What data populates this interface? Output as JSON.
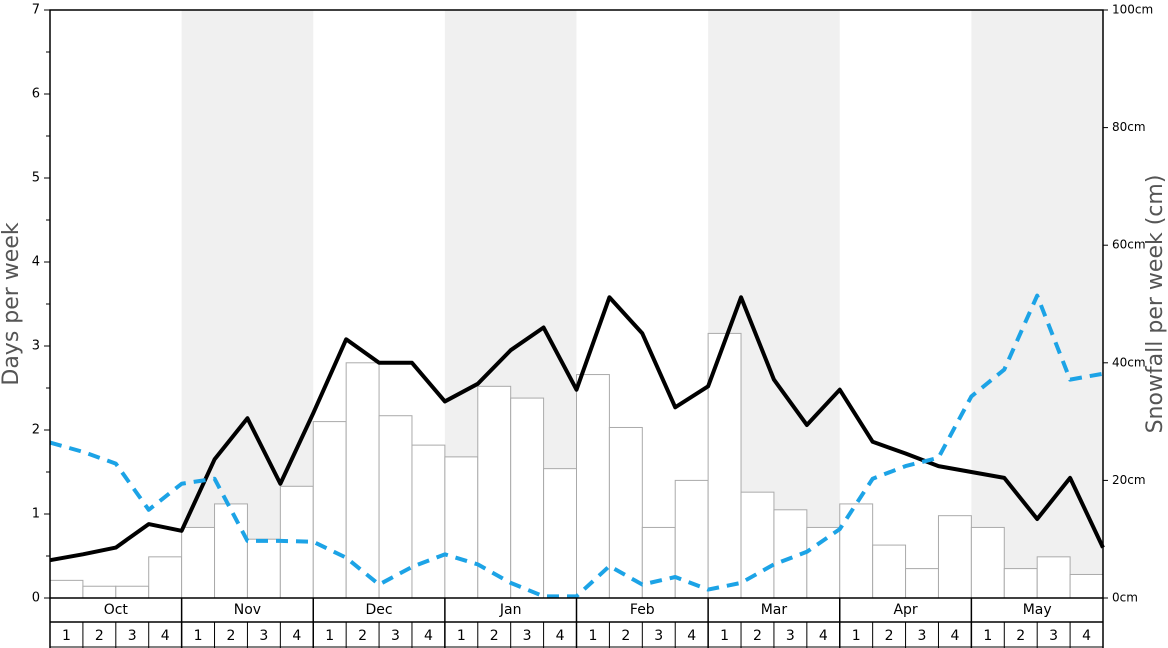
{
  "chart_data": {
    "type": "bar",
    "y_label": "Days per week",
    "y2_label": "Snowfall per week (cm)",
    "months": [
      "Oct",
      "Nov",
      "Dec",
      "Jan",
      "Feb",
      "Mar",
      "Apr",
      "May"
    ],
    "categories": [
      "1",
      "2",
      "3",
      "4",
      "1",
      "2",
      "3",
      "4",
      "1",
      "2",
      "3",
      "4",
      "1",
      "2",
      "3",
      "4",
      "1",
      "2",
      "3",
      "4",
      "1",
      "2",
      "3",
      "4",
      "1",
      "2",
      "3",
      "4",
      "1",
      "2",
      "3",
      "4"
    ],
    "xlim": [
      0,
      32
    ],
    "ylim": [
      0,
      7
    ],
    "yticks": [
      0,
      1,
      2,
      3,
      4,
      5,
      6,
      7
    ],
    "y2lim": [
      0,
      100
    ],
    "y2ticks": [
      {
        "value": 0,
        "label": "0cm"
      },
      {
        "value": 20,
        "label": "20cm"
      },
      {
        "value": 40,
        "label": "40cm"
      },
      {
        "value": 60,
        "label": "60cm"
      },
      {
        "value": 80,
        "label": "80cm"
      },
      {
        "value": 100,
        "label": "100cm"
      }
    ],
    "series": [
      {
        "type": "bar",
        "axis": "y2",
        "color": "#ffffff",
        "values": [
          3,
          2,
          2,
          7,
          12,
          16,
          10,
          19,
          30,
          40,
          31,
          26,
          24,
          36,
          34,
          22,
          38,
          29,
          12,
          20,
          45,
          18,
          15,
          12,
          16,
          9,
          5,
          14,
          12,
          5,
          7,
          4
        ]
      },
      {
        "type": "line",
        "color": "#000000",
        "dashed": false,
        "x": [
          0,
          1,
          2,
          3,
          4,
          5,
          6,
          7,
          8,
          9,
          10,
          11,
          12,
          13,
          14,
          15,
          16,
          17,
          18,
          19,
          20,
          21,
          22,
          23,
          24,
          25,
          26,
          27,
          28,
          29,
          30,
          31,
          32
        ],
        "values": [
          0.45,
          0.52,
          0.6,
          0.88,
          0.8,
          1.65,
          2.14,
          1.36,
          2.2,
          3.08,
          2.8,
          2.8,
          2.34,
          2.55,
          2.95,
          3.22,
          2.48,
          3.58,
          3.15,
          2.27,
          2.52,
          3.58,
          2.6,
          2.06,
          2.48,
          1.86,
          1.72,
          1.57,
          1.5,
          1.43,
          0.94,
          1.43,
          0.6
        ]
      },
      {
        "type": "line",
        "color": "#1ca3e6",
        "dashed": true,
        "x": [
          0,
          1,
          2,
          3,
          4,
          5,
          6,
          7,
          8,
          9,
          10,
          11,
          12,
          13,
          14,
          15,
          16,
          17,
          18,
          19,
          20,
          21,
          22,
          23,
          24,
          25,
          26,
          27,
          28,
          29,
          30,
          31,
          32
        ],
        "values": [
          1.85,
          1.74,
          1.6,
          1.05,
          1.36,
          1.42,
          0.68,
          0.68,
          0.67,
          0.48,
          0.16,
          0.37,
          0.52,
          0.4,
          0.18,
          0.02,
          0.02,
          0.38,
          0.16,
          0.25,
          0.1,
          0.18,
          0.4,
          0.55,
          0.82,
          1.42,
          1.57,
          1.67,
          2.4,
          2.72,
          3.6,
          2.6,
          2.67
        ]
      }
    ]
  }
}
